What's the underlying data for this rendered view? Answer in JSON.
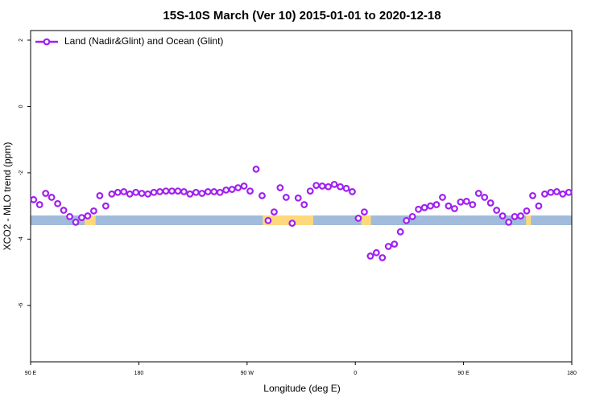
{
  "chart_data": {
    "type": "line",
    "title": "15S-10S March (Ver 10)   2015-01-01 to 2020-12-18",
    "xlabel": "Longitude (deg E)",
    "ylabel": "XCO2 - MLO trend (ppm)",
    "x": [
      92.5,
      97.5,
      102.5,
      107.5,
      112.5,
      117.5,
      122.5,
      127.5,
      132.5,
      137.5,
      142.5,
      147.5,
      152.5,
      157.5,
      162.5,
      167.5,
      172.5,
      177.5,
      182.5,
      187.5,
      192.5,
      197.5,
      202.5,
      207.5,
      212.5,
      217.5,
      222.5,
      227.5,
      232.5,
      237.5,
      242.5,
      247.5,
      252.5,
      257.5,
      262.5,
      267.5,
      272.5,
      277.5,
      282.5,
      287.5,
      292.5,
      297.5,
      302.5,
      307.5,
      312.5,
      317.5,
      322.5,
      327.5,
      332.5,
      337.5,
      342.5,
      347.5,
      352.5,
      357.5,
      362.5,
      367.5,
      372.5,
      377.5,
      382.5,
      387.5,
      392.5,
      397.5,
      402.5,
      407.5,
      412.5,
      417.5,
      422.5,
      427.5,
      432.5,
      437.5,
      442.5,
      447.5,
      452.5,
      457.5,
      462.5,
      467.5,
      472.5,
      477.5,
      482.5,
      487.5,
      492.5,
      497.5,
      502.5,
      507.5,
      512.5,
      517.5,
      522.5,
      527.5,
      532.5,
      537.5
    ],
    "series": [
      {
        "name": "Land (Nadir&Glint) and Ocean (Glint)",
        "color": "#a020f0",
        "values": [
          -2.81,
          -2.96,
          -2.62,
          -2.74,
          -2.93,
          -3.13,
          -3.32,
          -3.49,
          -3.35,
          -3.3,
          -3.15,
          -2.69,
          -3.0,
          -2.64,
          -2.59,
          -2.57,
          -2.64,
          -2.59,
          -2.62,
          -2.64,
          -2.59,
          -2.57,
          -2.55,
          -2.55,
          -2.55,
          -2.57,
          -2.64,
          -2.59,
          -2.62,
          -2.57,
          -2.57,
          -2.59,
          -2.52,
          -2.5,
          -2.45,
          -2.4,
          -2.55,
          -1.89,
          -2.69,
          -3.44,
          -3.18,
          -2.45,
          -2.74,
          -3.52,
          -2.76,
          -2.96,
          -2.55,
          -2.38,
          -2.4,
          -2.42,
          -2.35,
          -2.42,
          -2.47,
          -2.57,
          -3.37,
          -3.18,
          -4.51,
          -4.41,
          -4.56,
          -4.22,
          -4.15,
          -3.78,
          -3.44,
          -3.32,
          -3.1,
          -3.05,
          -3.0,
          -2.96,
          -2.74,
          -3.0,
          -3.08,
          -2.88,
          -2.86,
          -2.96,
          -2.62,
          -2.74,
          -2.91,
          -3.13,
          -3.3,
          -3.49,
          -3.32,
          -3.3,
          -3.15,
          -2.69,
          -3.0,
          -2.64,
          -2.59,
          -2.57,
          -2.64,
          -2.59
        ]
      }
    ],
    "xlim": [
      90,
      540
    ],
    "xticks": [
      {
        "value": 90,
        "label": "90 E"
      },
      {
        "value": 180,
        "label": "180"
      },
      {
        "value": 270,
        "label": "90 W"
      },
      {
        "value": 360,
        "label": "0"
      },
      {
        "value": 450,
        "label": "90 E"
      },
      {
        "value": 540,
        "label": "180"
      }
    ],
    "ylim": [
      -7.7,
      2.29
    ],
    "yticks": [
      -6,
      -4,
      -2,
      0,
      2
    ],
    "legend": "top-left",
    "surface": {
      "ocean_color": "#a0bbdc",
      "land_color": "#fed97c",
      "land": [
        [
          135,
          144
        ],
        [
          283,
          325
        ],
        [
          365,
          373
        ],
        [
          502,
          506
        ]
      ]
    }
  }
}
